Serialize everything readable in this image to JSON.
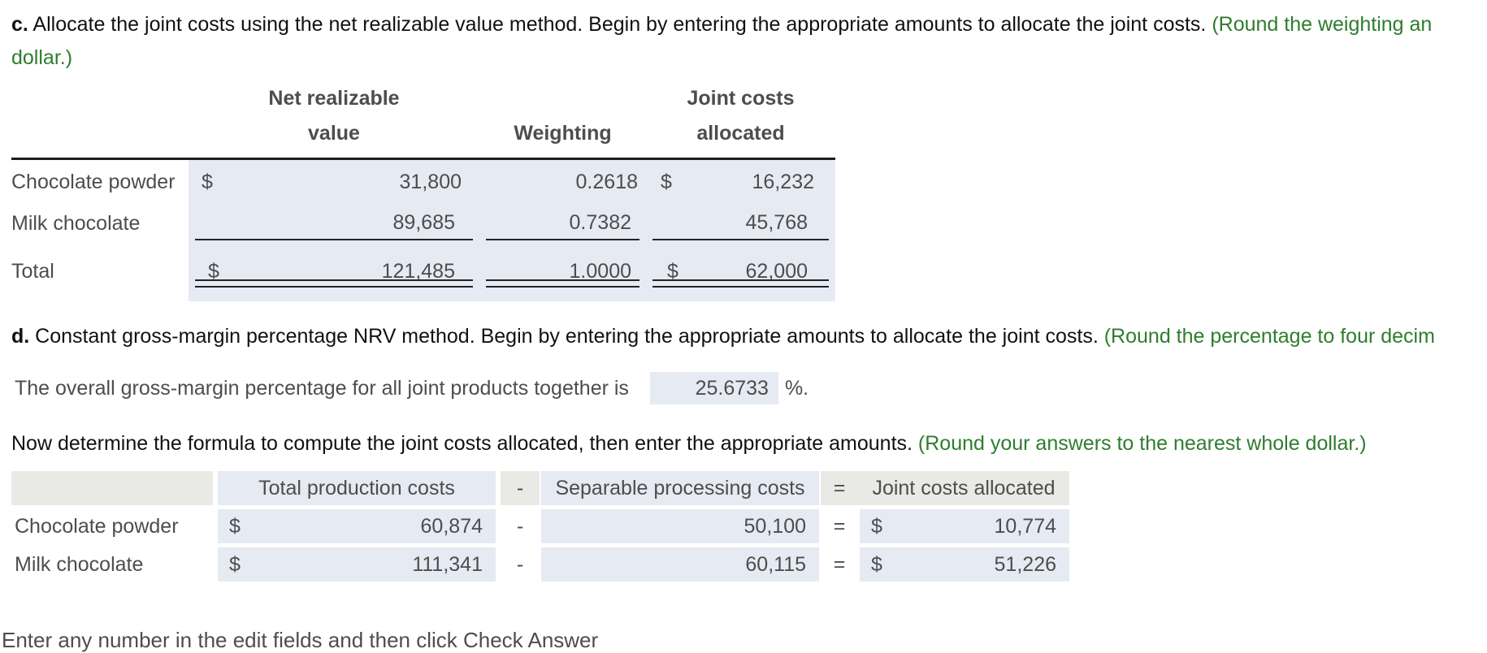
{
  "colors": {
    "field_bg": "#e6eaf3",
    "header_gray_bg": "#e9eae6",
    "instruction_green": "#2e7d2e",
    "table_text_gray": "#4d4d4d"
  },
  "section_c": {
    "label": "c.",
    "text": " Allocate the joint costs using the net realizable value method. Begin by entering the appropriate amounts to allocate the joint costs. ",
    "note_line1": "(Round the weighting an",
    "note_line2": "dollar.)"
  },
  "nrv_table": {
    "headers": {
      "value_line1": "Net realizable",
      "value_line2": "value",
      "weighting": "Weighting",
      "allocated_line1": "Joint costs",
      "allocated_line2": "allocated"
    },
    "rows": [
      {
        "label": "Chocolate powder",
        "currency": "$",
        "value": "31,800",
        "weighting": "0.2618",
        "alloc_currency": "$",
        "allocated": "16,232"
      },
      {
        "label": "Milk chocolate",
        "currency": "",
        "value": "89,685",
        "weighting": "0.7382",
        "alloc_currency": "",
        "allocated": "45,768"
      }
    ],
    "total": {
      "label": "Total",
      "currency": "$",
      "value": "121,485",
      "weighting": "1.0000",
      "alloc_currency": "$",
      "allocated": "62,000"
    }
  },
  "section_d": {
    "label": "d.",
    "text": " Constant gross-margin percentage NRV method. Begin by entering the appropriate amounts to allocate the joint costs. ",
    "note": "(Round the percentage to four decim"
  },
  "gross_margin": {
    "text": "The overall gross-margin percentage for all joint products together is",
    "value": "25.6733",
    "suffix": "%."
  },
  "formula_intro": {
    "text": "Now determine the formula to compute the joint costs allocated, then enter the appropriate amounts. ",
    "note": "(Round your answers to the nearest whole dollar.)"
  },
  "formula_table": {
    "headers": {
      "col1": "Total production costs",
      "minus": "-",
      "col2": "Separable processing costs",
      "equals": "=",
      "col3": "Joint costs allocated"
    },
    "rows": [
      {
        "label": "Chocolate powder",
        "currency": "$",
        "total_cost": "60,874",
        "minus": "-",
        "separable": "50,100",
        "equals": "=",
        "alloc_currency": "$",
        "allocated": "10,774"
      },
      {
        "label": "Milk chocolate",
        "currency": "$",
        "total_cost": "111,341",
        "minus": "-",
        "separable": "60,115",
        "equals": "=",
        "alloc_currency": "$",
        "allocated": "51,226"
      }
    ]
  },
  "footer": "Enter any number in the edit fields and then click Check Answer"
}
